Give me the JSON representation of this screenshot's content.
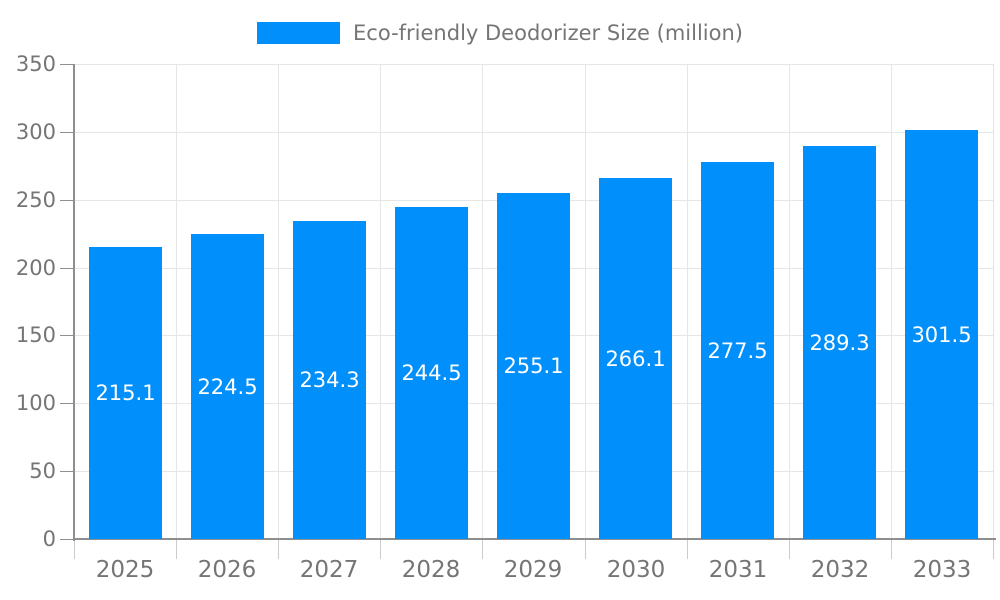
{
  "chart_data": {
    "type": "bar",
    "title": "",
    "series_name": "Eco-friendly Deodorizer Size (million)",
    "categories": [
      "2025",
      "2026",
      "2027",
      "2028",
      "2029",
      "2030",
      "2031",
      "2032",
      "2033"
    ],
    "values": [
      215.1,
      224.5,
      234.3,
      244.5,
      255.1,
      266.1,
      277.5,
      289.3,
      301.5
    ],
    "xlabel": "",
    "ylabel": "",
    "ylim": [
      0,
      350
    ],
    "ytick_step": 50,
    "grid": true,
    "legend_position": "top",
    "colors": {
      "bar": "#008FFB",
      "grid": "#e6e6e6",
      "axis": "#8f8f8f",
      "minor_tick": "#cccccc",
      "text": "#757575",
      "value_label": "#ffffff"
    }
  }
}
